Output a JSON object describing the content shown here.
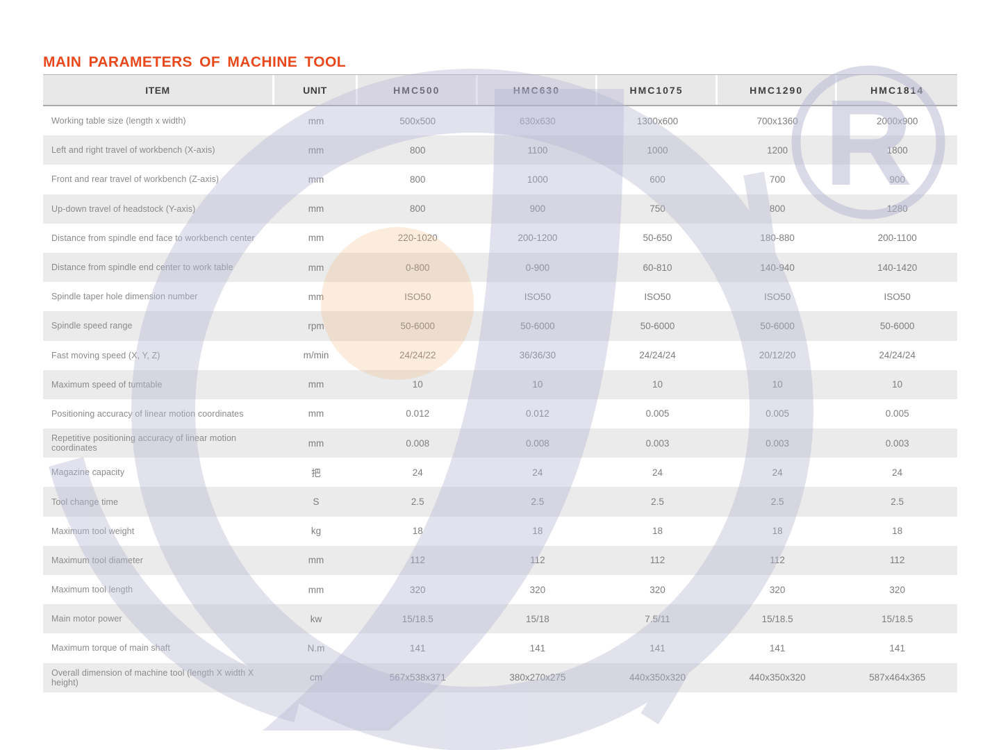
{
  "page": {
    "title": "MAIN PARAMETERS OF MACHINE TOOL"
  },
  "colors": {
    "title_accent": "#e8481c",
    "header_background": "#e9e8e8",
    "alt_row_background": "#ebebeb",
    "watermark_lavender": "#b7b7d4",
    "watermark_peach": "#f2b988",
    "body_text": "#7d7d7d"
  },
  "watermark": {
    "registered_mark": "R"
  },
  "table": {
    "columns": [
      "ITEM",
      "UNIT",
      "HMC500",
      "HMC630",
      "HMC1075",
      "HMC1290",
      "HMC1814"
    ],
    "rows": [
      {
        "item": "Working table size (length x width)",
        "unit": "mm",
        "values": [
          "500x500",
          "630x630",
          "1300x600",
          "700x1360",
          "2000x900"
        ]
      },
      {
        "item": "Left and right travel of workbench (X-axis)",
        "unit": "mm",
        "values": [
          "800",
          "1100",
          "1000",
          "1200",
          "1800"
        ]
      },
      {
        "item": "Front and rear travel of workbench (Z-axis)",
        "unit": "mm",
        "values": [
          "800",
          "1000",
          "600",
          "700",
          "900"
        ]
      },
      {
        "item": "Up-down travel of headstock (Y-axis)",
        "unit": "mm",
        "values": [
          "800",
          "900",
          "750",
          "800",
          "1280"
        ]
      },
      {
        "item": "Distance from spindle end face to workbench center",
        "unit": "mm",
        "values": [
          "220-1020",
          "200-1200",
          "50-650",
          "180-880",
          "200-1100"
        ]
      },
      {
        "item": "Distance from spindle end center to work table",
        "unit": "mm",
        "values": [
          "0-800",
          "0-900",
          "60-810",
          "140-940",
          "140-1420"
        ]
      },
      {
        "item": "Spindle taper hole dimension number",
        "unit": "mm",
        "values": [
          "ISO50",
          "ISO50",
          "ISO50",
          "ISO50",
          "ISO50"
        ]
      },
      {
        "item": "Spindle speed range",
        "unit": "rpm",
        "values": [
          "50-6000",
          "50-6000",
          "50-6000",
          "50-6000",
          "50-6000"
        ]
      },
      {
        "item": "Fast moving speed (X, Y, Z)",
        "unit": "m/min",
        "values": [
          "24/24/22",
          "36/36/30",
          "24/24/24",
          "20/12/20",
          "24/24/24"
        ]
      },
      {
        "item": "Maximum speed of tumtable",
        "unit": "mm",
        "values": [
          "10",
          "10",
          "10",
          "10",
          "10"
        ]
      },
      {
        "item": "Positioning accuracy of linear motion coordinates",
        "unit": "mm",
        "values": [
          "0.012",
          "0.012",
          "0.005",
          "0.005",
          "0.005"
        ]
      },
      {
        "item": "Repetitive positioning accuracy of linear motion coordinates",
        "unit": "mm",
        "values": [
          "0.008",
          "0.008",
          "0.003",
          "0.003",
          "0.003"
        ]
      },
      {
        "item": "Magazine capacity",
        "unit": "把",
        "values": [
          "24",
          "24",
          "24",
          "24",
          "24"
        ]
      },
      {
        "item": "Tool change time",
        "unit": "S",
        "values": [
          "2.5",
          "2.5",
          "2.5",
          "2.5",
          "2.5"
        ]
      },
      {
        "item": "Maximum tool weight",
        "unit": "kg",
        "values": [
          "18",
          "18",
          "18",
          "18",
          "18"
        ]
      },
      {
        "item": "Maximum tool diameter",
        "unit": "mm",
        "values": [
          "112",
          "112",
          "112",
          "112",
          "112"
        ]
      },
      {
        "item": "Maximum tool length",
        "unit": "mm",
        "values": [
          "320",
          "320",
          "320",
          "320",
          "320"
        ]
      },
      {
        "item": "Main motor power",
        "unit": "kw",
        "values": [
          "15/18.5",
          "15/18",
          "7.5/11",
          "15/18.5",
          "15/18.5"
        ]
      },
      {
        "item": "Maximum torque of main shaft",
        "unit": "N.m",
        "values": [
          "141",
          "141",
          "141",
          "141",
          "141"
        ]
      },
      {
        "item": "Overall dimension of machine tool (length X width X height)",
        "unit": "cm",
        "values": [
          "567x538x371",
          "380x270x275",
          "440x350x320",
          "440x350x320",
          "587x464x365"
        ]
      }
    ]
  }
}
